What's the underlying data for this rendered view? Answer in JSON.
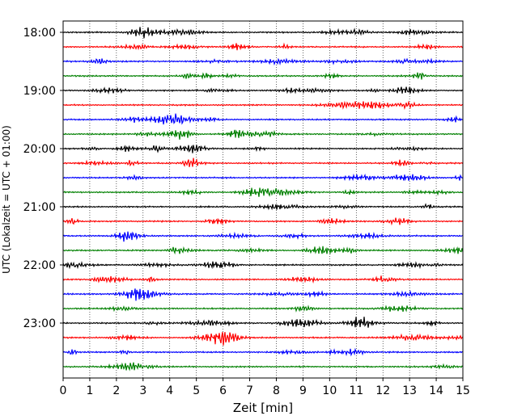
{
  "chart_data": {
    "type": "line",
    "title": "",
    "xlabel": "Zeit  [min]",
    "ylabel": "UTC (Lokalzeit = UTC + 01:00)",
    "xlim": [
      0,
      15
    ],
    "x_ticks": [
      "0",
      "1",
      "2",
      "3",
      "4",
      "5",
      "6",
      "7",
      "8",
      "9",
      "10",
      "11",
      "12",
      "13",
      "14",
      "15"
    ],
    "y_ticks": [
      "18:00",
      "19:00",
      "20:00",
      "21:00",
      "22:00",
      "23:00"
    ],
    "grid": "vertical dotted lines at each minute",
    "trace_interval_minutes": 15,
    "trace_start": "18:00",
    "trace_count": 24,
    "trace_colors": [
      "#000000",
      "#ff0000",
      "#0000ff",
      "#008000"
    ]
  }
}
